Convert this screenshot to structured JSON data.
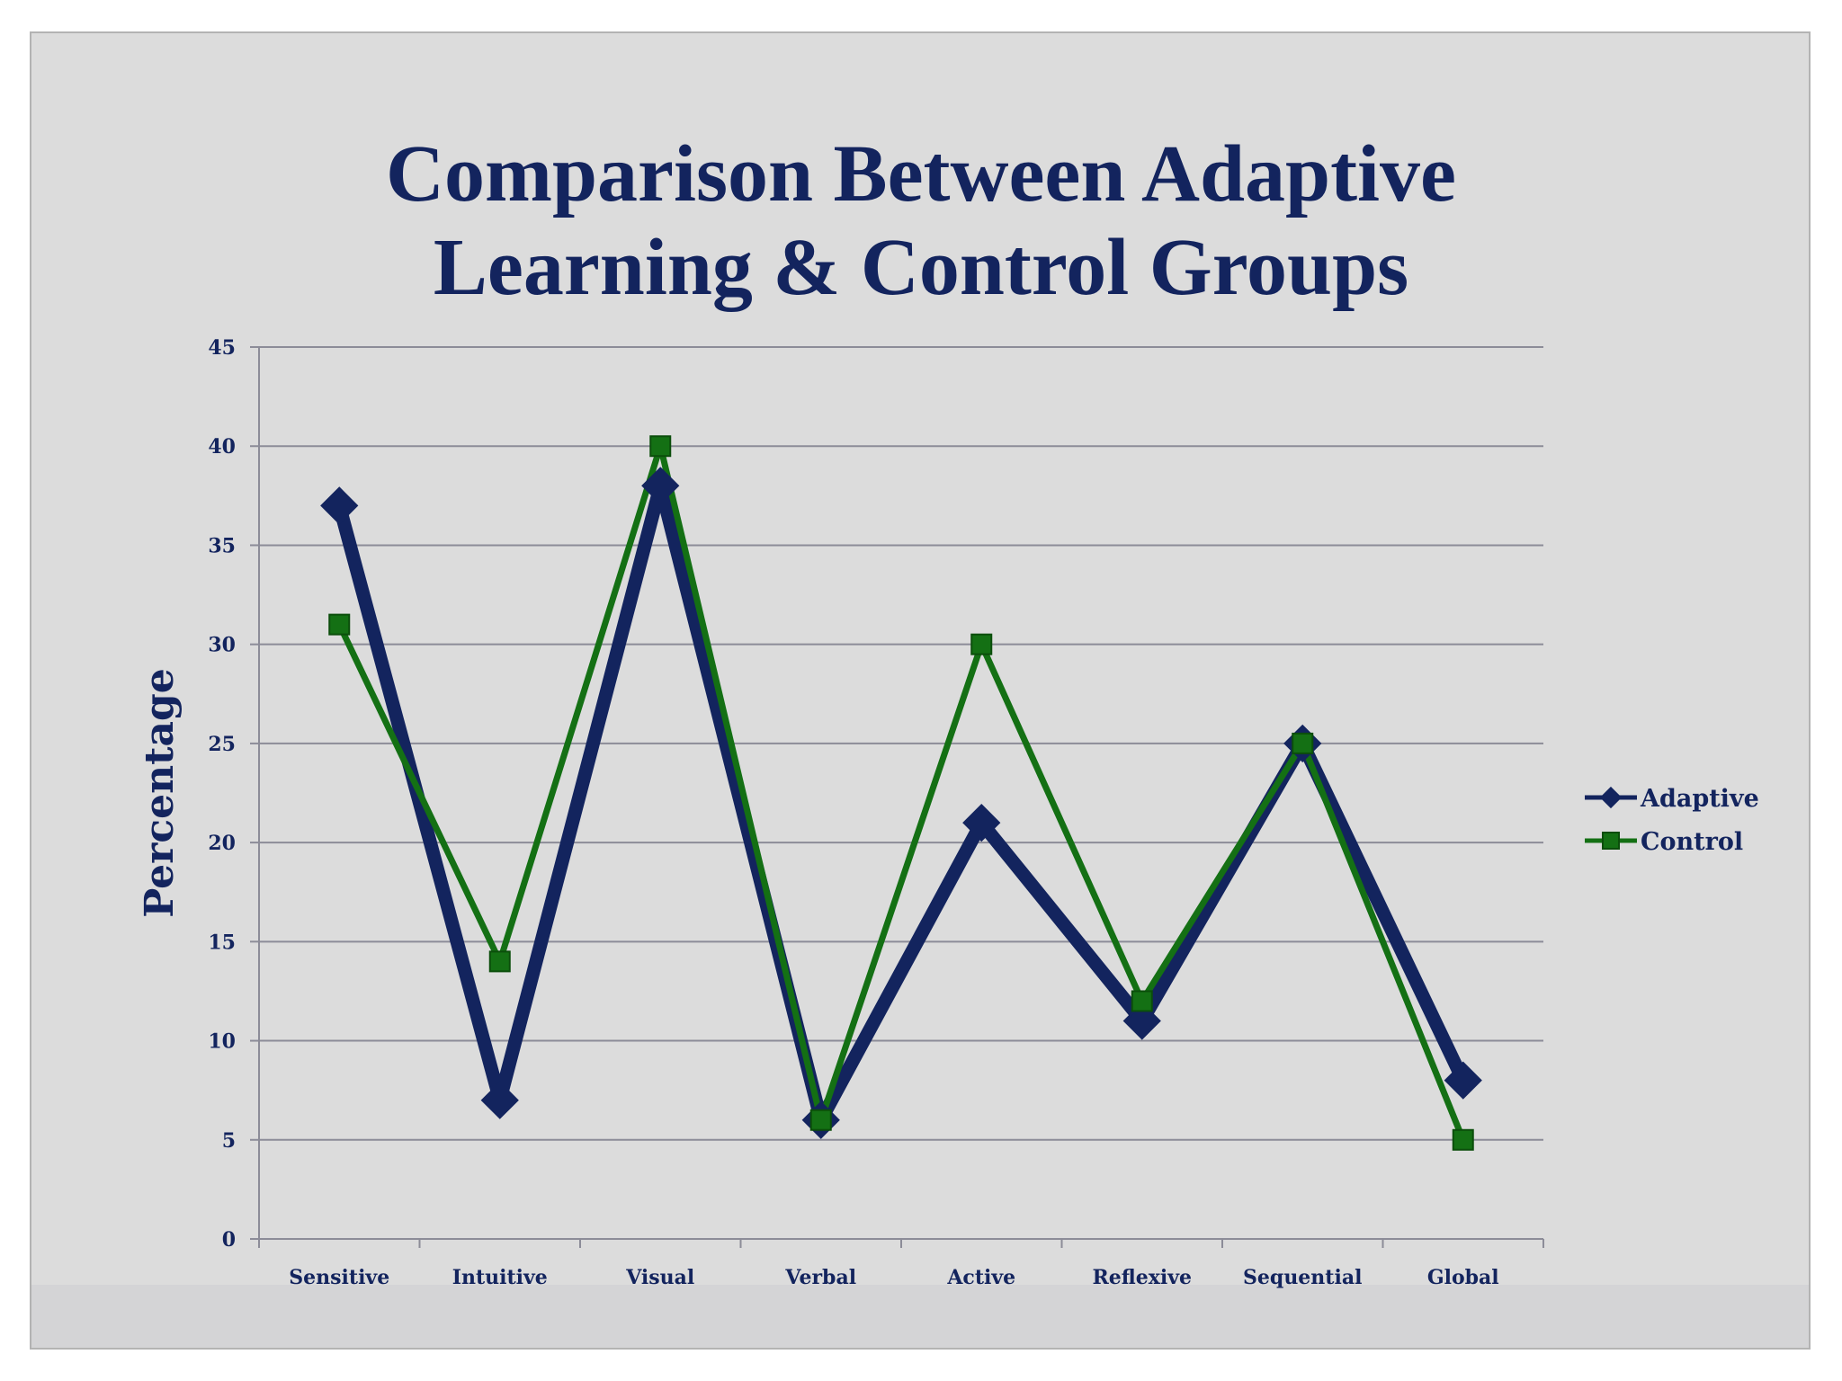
{
  "chart_data": {
    "type": "line",
    "title": "Comparison Between Adaptive\nLearning & Control Groups",
    "xlabel": "",
    "ylabel": "Percentage",
    "ylim": [
      0,
      45
    ],
    "ytick_step": 5,
    "grid": true,
    "legend_position": "right",
    "categories": [
      "Sensitive",
      "Intuitive",
      "Visual",
      "Verbal",
      "Active",
      "Reflexive",
      "Sequential",
      "Global"
    ],
    "series": [
      {
        "name": "Adaptive",
        "values": [
          37,
          7,
          38,
          6,
          21,
          11,
          25,
          8
        ],
        "color": "#13245e",
        "marker": "diamond"
      },
      {
        "name": "Control",
        "values": [
          31,
          14,
          40,
          6,
          30,
          12,
          25,
          5
        ],
        "color": "#147014",
        "marker": "square"
      }
    ]
  }
}
